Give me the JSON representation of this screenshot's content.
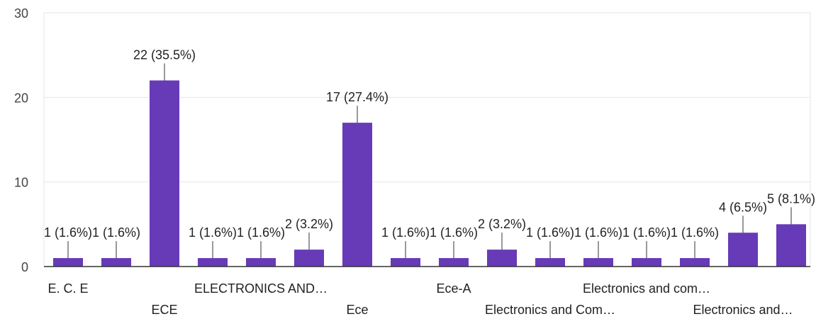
{
  "colors": {
    "bar": "#673ab7",
    "grid": "#e6e6e6",
    "axis": "#333333",
    "leader": "#333333"
  },
  "chart_data": {
    "type": "bar",
    "categories": [
      "E. C. E",
      "",
      "ECE",
      "",
      "ELECTRONICS AND…",
      "",
      "Ece",
      "",
      "Ece-A",
      "",
      "Electronics and Com…",
      "",
      "Electronics and com…",
      "",
      "Electronics and…",
      ""
    ],
    "values": [
      1,
      1,
      22,
      1,
      1,
      2,
      17,
      1,
      1,
      2,
      1,
      1,
      1,
      1,
      4,
      5
    ],
    "data_labels": [
      "1 (1.6%)",
      "1 (1.6%)",
      "22 (35.5%)",
      "1 (1.6%)",
      "1 (1.6%)",
      "2 (3.2%)",
      "17 (27.4%)",
      "1 (1.6%)",
      "1 (1.6%)",
      "2 (3.2%)",
      "1 (1.6%)",
      "1 (1.6%)",
      "1 (1.6%)",
      "1 (1.6%)",
      "4 (6.5%)",
      "5 (8.1%)"
    ],
    "title": "",
    "xlabel": "",
    "ylabel": "",
    "ylim": [
      0,
      30
    ],
    "yticks": [
      0,
      10,
      20,
      30
    ],
    "grid": true,
    "legend": "none"
  }
}
